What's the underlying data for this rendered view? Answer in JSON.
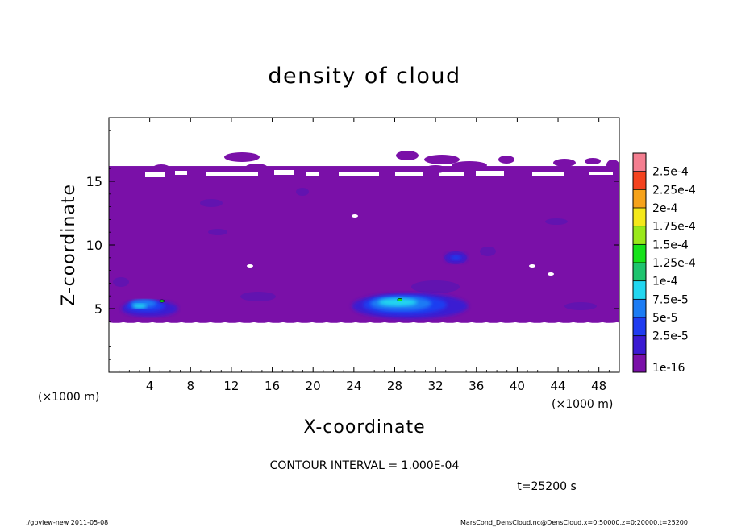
{
  "chart_data": {
    "type": "heatmap",
    "title": "density of cloud",
    "xlabel": "X-coordinate",
    "ylabel": "Z-coordinate",
    "x_unit_label": "(×1000 m)",
    "z_unit_label": "(×1000 m)",
    "xlim": [
      0,
      50
    ],
    "ylim": [
      0,
      20
    ],
    "x_ticks": [
      4,
      8,
      12,
      16,
      20,
      24,
      28,
      32,
      36,
      40,
      44,
      48
    ],
    "y_ticks": [
      5,
      10,
      15
    ],
    "contour_interval_label": "CONTOUR INTERVAL = 1.000E-04",
    "time_label": "t=25200 s",
    "colorbar": {
      "levels": [
        "1e-16",
        "2.5e-5",
        "5e-5",
        "7.5e-5",
        "1e-4",
        "1.25e-4",
        "1.5e-4",
        "1.75e-4",
        "2e-4",
        "2.25e-4",
        "2.5e-4"
      ],
      "colors": [
        "#7a10a8",
        "#3a1ad2",
        "#1f3cf0",
        "#1c7cf4",
        "#22d6f0",
        "#1ec46e",
        "#16e21a",
        "#9ae81a",
        "#f4e81a",
        "#f6a21a",
        "#f4421e",
        "#f47e90"
      ]
    },
    "regions": {
      "cloud_layer_z": [
        4.0,
        16.2
      ],
      "base_color": "#7a10a8",
      "hotspots": [
        {
          "x": 4.5,
          "z": 5.2,
          "level": "7.5e-5"
        },
        {
          "x": 29.5,
          "z": 5.5,
          "level": "7.5e-5"
        },
        {
          "x": 34,
          "z": 9,
          "level": "2.5e-5"
        }
      ]
    }
  },
  "footer": {
    "left": "./gpview-new   2011-05-08",
    "right": "MarsCond_DensCloud.nc@DensCloud,x=0:50000,z=0:20000,t=25200"
  }
}
